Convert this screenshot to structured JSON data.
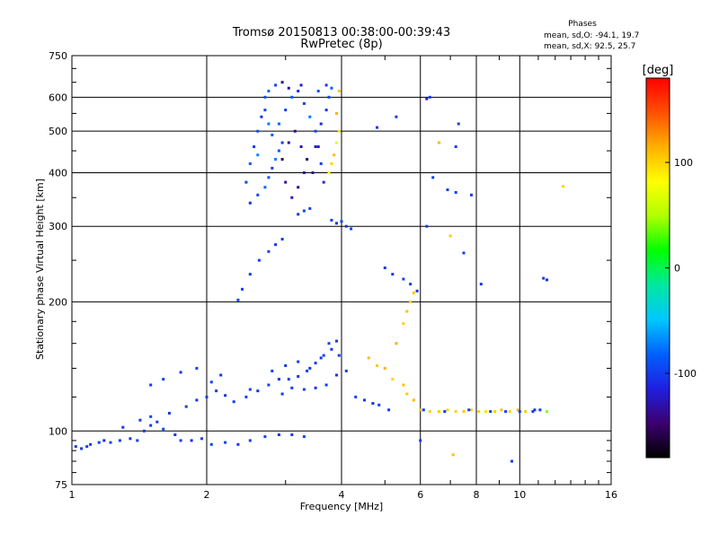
{
  "chart_data": {
    "type": "scatter",
    "title": "Tromsø 20150813 00:38:00-00:39:43",
    "subtitle": "RwPretec (8p)",
    "xlabel": "Frequency [MHz]",
    "ylabel": "Stationary phase Virtual Height [km]",
    "x_scale": "log",
    "y_scale": "log",
    "xlim": [
      1,
      16
    ],
    "ylim": [
      75,
      750
    ],
    "x_ticks": [
      1,
      2,
      4,
      6,
      8,
      10,
      16
    ],
    "y_ticks": [
      75,
      100,
      200,
      300,
      400,
      500,
      600,
      750
    ],
    "x_ticks_labeled": [
      "1",
      "2",
      "4",
      "6",
      "8",
      "10",
      "16"
    ],
    "y_ticks_labeled": [
      "75",
      "100",
      "200",
      "300",
      "400",
      "500",
      "600",
      "750"
    ],
    "x_minor": [
      3,
      5,
      7,
      9,
      11,
      12,
      13,
      14,
      15
    ],
    "grid": true,
    "stats": {
      "title": "Phases",
      "line1": "mean, sd,O: -94.1, 19.7",
      "line2": "mean, sd,X:  92.5, 25.7"
    },
    "colorbar": {
      "label": "[deg]",
      "range": [
        -180,
        180
      ],
      "ticks": [
        100,
        0,
        -100
      ],
      "tick_labels": [
        "100",
        "0",
        "-100"
      ],
      "colors": [
        "#000000",
        "#3b0070",
        "#1f1fe0",
        "#0060ff",
        "#00c8ff",
        "#00e8a0",
        "#00ff00",
        "#b0ff00",
        "#ffff00",
        "#ffb000",
        "#ff5000",
        "#ff0000"
      ]
    },
    "series": [
      {
        "values": [
          [
            1.02,
            92,
            -100
          ],
          [
            1.05,
            91,
            -105
          ],
          [
            1.08,
            92,
            -98
          ],
          [
            1.1,
            93,
            -102
          ],
          [
            1.15,
            94,
            -100
          ],
          [
            1.18,
            95,
            -110
          ],
          [
            1.22,
            94,
            -95
          ],
          [
            1.28,
            95,
            -100
          ],
          [
            1.35,
            96,
            -104
          ],
          [
            1.4,
            95,
            -98
          ],
          [
            1.45,
            100,
            -100
          ],
          [
            1.5,
            103,
            -106
          ],
          [
            1.55,
            105,
            -100
          ],
          [
            1.6,
            101,
            -95
          ],
          [
            1.7,
            98,
            -102
          ],
          [
            1.75,
            95,
            -100
          ],
          [
            1.85,
            95,
            -108
          ],
          [
            1.95,
            96,
            -100
          ],
          [
            2.05,
            93,
            -96
          ],
          [
            2.2,
            94,
            -100
          ],
          [
            2.35,
            93,
            -104
          ],
          [
            2.5,
            95,
            -100
          ],
          [
            2.7,
            97,
            -98
          ],
          [
            2.9,
            98,
            -102
          ],
          [
            3.1,
            98,
            -100
          ],
          [
            3.3,
            97,
            -96
          ],
          [
            1.3,
            102,
            -104
          ],
          [
            1.42,
            106,
            -100
          ],
          [
            1.5,
            108,
            -96
          ],
          [
            1.65,
            110,
            -102
          ],
          [
            1.8,
            114,
            -100
          ],
          [
            1.9,
            118,
            -106
          ],
          [
            2.0,
            120,
            -100
          ],
          [
            2.1,
            124,
            -98
          ],
          [
            2.2,
            121,
            -104
          ],
          [
            2.3,
            117,
            -100
          ],
          [
            2.45,
            120,
            -96
          ],
          [
            2.6,
            124,
            -102
          ],
          [
            2.75,
            128,
            -100
          ],
          [
            2.9,
            132,
            -104
          ],
          [
            3.05,
            132,
            -98
          ],
          [
            3.2,
            134,
            -100
          ],
          [
            3.35,
            138,
            -102
          ],
          [
            3.5,
            144,
            -100
          ],
          [
            3.65,
            150,
            -96
          ],
          [
            3.8,
            155,
            -104
          ],
          [
            3.95,
            150,
            -100
          ],
          [
            2.05,
            130,
            -100
          ],
          [
            2.15,
            135,
            -104
          ],
          [
            2.5,
            125,
            -98
          ],
          [
            2.8,
            138,
            -100
          ],
          [
            3.0,
            142,
            -102
          ],
          [
            3.2,
            145,
            -100
          ],
          [
            3.4,
            140,
            -106
          ],
          [
            3.6,
            148,
            -100
          ],
          [
            3.75,
            160,
            -96
          ],
          [
            3.9,
            162,
            -100
          ],
          [
            3.9,
            135,
            -102
          ],
          [
            4.1,
            138,
            -100
          ],
          [
            4.3,
            120,
            -98
          ],
          [
            4.5,
            118,
            -100
          ],
          [
            4.7,
            116,
            -104
          ],
          [
            4.85,
            115,
            -100
          ],
          [
            5.1,
            112,
            -102
          ],
          [
            3.7,
            128,
            -100
          ],
          [
            3.5,
            126,
            -104
          ],
          [
            3.3,
            125,
            -98
          ],
          [
            3.1,
            126,
            -100
          ],
          [
            2.95,
            122,
            -102
          ],
          [
            1.9,
            140,
            -100
          ],
          [
            1.75,
            137,
            -104
          ],
          [
            1.6,
            132,
            -98
          ],
          [
            1.5,
            128,
            -100
          ],
          [
            4.6,
            148,
            110
          ],
          [
            4.8,
            142,
            105
          ],
          [
            5.0,
            140,
            112
          ],
          [
            5.2,
            132,
            100
          ],
          [
            5.5,
            128,
            108
          ],
          [
            5.6,
            122,
            104
          ],
          [
            5.8,
            118,
            110
          ],
          [
            5.3,
            160,
            115
          ],
          [
            5.5,
            178,
            100
          ],
          [
            5.6,
            190,
            108
          ],
          [
            5.7,
            200,
            100
          ],
          [
            5.8,
            210,
            106
          ],
          [
            6.0,
            112,
            105
          ],
          [
            6.3,
            111,
            100
          ],
          [
            6.6,
            111,
            104
          ],
          [
            6.9,
            112,
            98
          ],
          [
            7.2,
            111,
            102
          ],
          [
            7.5,
            111,
            106
          ],
          [
            7.8,
            112,
            100
          ],
          [
            8.1,
            111,
            104
          ],
          [
            8.4,
            111,
            96
          ],
          [
            8.8,
            111,
            102
          ],
          [
            9.1,
            112,
            108
          ],
          [
            9.5,
            111,
            100
          ],
          [
            9.9,
            112,
            110
          ],
          [
            10.3,
            111,
            104
          ],
          [
            10.7,
            111,
            -98
          ],
          [
            11.1,
            112,
            -100
          ],
          [
            11.5,
            111,
            40
          ],
          [
            6.1,
            112,
            -100
          ],
          [
            6.8,
            111,
            -104
          ],
          [
            7.7,
            112,
            -96
          ],
          [
            8.6,
            111,
            -102
          ],
          [
            9.3,
            111,
            -100
          ],
          [
            10.0,
            111,
            -98
          ],
          [
            10.8,
            112,
            -104
          ],
          [
            3.8,
            310,
            -100
          ],
          [
            3.9,
            305,
            -104
          ],
          [
            4.0,
            308,
            -98
          ],
          [
            4.1,
            300,
            -100
          ],
          [
            4.2,
            296,
            -102
          ],
          [
            3.4,
            330,
            -100
          ],
          [
            3.3,
            326,
            -96
          ],
          [
            3.2,
            320,
            -104
          ],
          [
            2.95,
            280,
            -100
          ],
          [
            2.85,
            272,
            -104
          ],
          [
            2.75,
            262,
            -98
          ],
          [
            2.62,
            250,
            -100
          ],
          [
            2.5,
            232,
            -102
          ],
          [
            2.4,
            214,
            -100
          ],
          [
            2.35,
            202,
            -96
          ],
          [
            5.0,
            240,
            -100
          ],
          [
            5.2,
            232,
            -104
          ],
          [
            5.5,
            226,
            -98
          ],
          [
            5.7,
            220,
            -100
          ],
          [
            5.9,
            212,
            -102
          ],
          [
            6.3,
            600,
            -100
          ],
          [
            6.2,
            595,
            -120
          ],
          [
            5.3,
            540,
            -100
          ],
          [
            4.8,
            510,
            -104
          ],
          [
            6.6,
            470,
            110
          ],
          [
            7.2,
            460,
            -100
          ],
          [
            7.8,
            355,
            -104
          ],
          [
            7.2,
            360,
            -100
          ],
          [
            6.9,
            365,
            -98
          ],
          [
            12.5,
            372,
            100
          ],
          [
            11.3,
            227,
            -100
          ],
          [
            11.5,
            225,
            -104
          ],
          [
            7.3,
            520,
            -100
          ],
          [
            6.4,
            390,
            -98
          ],
          [
            6.2,
            300,
            -100
          ],
          [
            7.0,
            285,
            104
          ],
          [
            7.5,
            260,
            -100
          ],
          [
            8.2,
            220,
            -104
          ],
          [
            9.6,
            85,
            -100
          ],
          [
            7.1,
            88,
            108
          ],
          [
            6.0,
            95,
            -100
          ]
        ]
      },
      {
        "values": [
          [
            2.5,
            340,
            -110
          ],
          [
            2.6,
            355,
            -95
          ],
          [
            2.7,
            370,
            -80
          ],
          [
            2.75,
            390,
            -90
          ],
          [
            2.8,
            410,
            -100
          ],
          [
            2.85,
            430,
            -72
          ],
          [
            2.9,
            450,
            -90
          ],
          [
            2.95,
            470,
            -100
          ],
          [
            2.8,
            490,
            -85
          ],
          [
            2.75,
            520,
            -75
          ],
          [
            2.7,
            560,
            -95
          ],
          [
            2.65,
            540,
            -110
          ],
          [
            2.6,
            500,
            -90
          ],
          [
            2.55,
            460,
            -100
          ],
          [
            2.5,
            420,
            -85
          ],
          [
            2.45,
            380,
            -95
          ],
          [
            2.6,
            440,
            -70
          ],
          [
            2.9,
            520,
            -80
          ],
          [
            3.0,
            560,
            -100
          ],
          [
            3.1,
            600,
            -85
          ],
          [
            3.2,
            620,
            -110
          ],
          [
            3.3,
            580,
            -100
          ],
          [
            3.4,
            540,
            -75
          ],
          [
            3.5,
            500,
            -95
          ],
          [
            3.55,
            460,
            -120
          ],
          [
            3.6,
            420,
            -100
          ],
          [
            3.65,
            380,
            -110
          ],
          [
            3.45,
            400,
            -130
          ],
          [
            3.35,
            430,
            -140
          ],
          [
            3.25,
            460,
            -125
          ],
          [
            3.15,
            500,
            -140
          ],
          [
            3.05,
            470,
            -130
          ],
          [
            2.95,
            430,
            -150
          ],
          [
            3.0,
            380,
            -135
          ],
          [
            3.1,
            350,
            -125
          ],
          [
            3.2,
            370,
            -140
          ],
          [
            3.3,
            400,
            -130
          ],
          [
            3.5,
            460,
            -120
          ],
          [
            3.6,
            520,
            -110
          ],
          [
            3.7,
            560,
            -105
          ],
          [
            3.75,
            600,
            -95
          ],
          [
            3.8,
            630,
            -85
          ],
          [
            3.7,
            640,
            -100
          ],
          [
            3.55,
            620,
            -90
          ],
          [
            3.25,
            640,
            -120
          ],
          [
            3.05,
            630,
            -135
          ],
          [
            2.95,
            650,
            -140
          ],
          [
            2.85,
            640,
            -95
          ],
          [
            2.75,
            620,
            -80
          ],
          [
            2.7,
            600,
            -90
          ],
          [
            3.9,
            470,
            70
          ],
          [
            3.95,
            500,
            90
          ],
          [
            3.85,
            440,
            110
          ],
          [
            3.8,
            420,
            100
          ],
          [
            3.75,
            400,
            80
          ],
          [
            3.9,
            550,
            115
          ],
          [
            3.95,
            620,
            105
          ]
        ]
      }
    ]
  }
}
